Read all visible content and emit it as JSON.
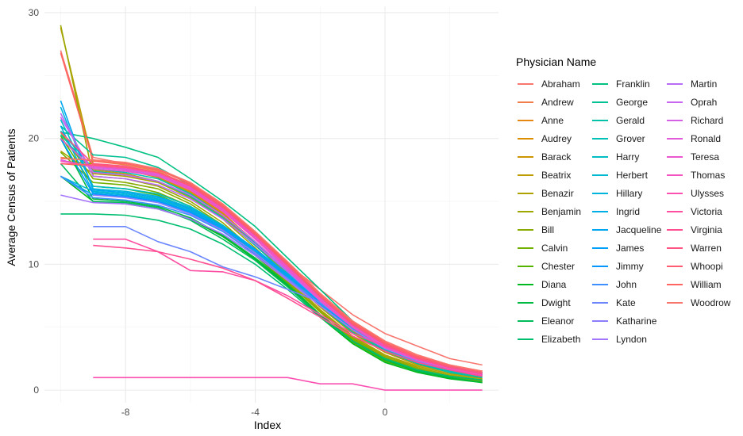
{
  "chart_data": {
    "type": "line",
    "title": "",
    "xlabel": "Index",
    "ylabel": "Average Census of Patients",
    "xlim": [
      -10.5,
      3.5
    ],
    "ylim": [
      -1,
      30.5
    ],
    "x_ticks": [
      -8,
      -4,
      0
    ],
    "y_ticks": [
      0,
      10,
      20,
      30
    ],
    "x": [
      -10,
      -9,
      -8,
      -7,
      -6,
      -5,
      -4,
      -3,
      -2,
      -1,
      0,
      1,
      2,
      3
    ],
    "legend_title": "Physician Name",
    "legend_position": "right",
    "grid": true,
    "series": [
      {
        "name": "Abraham",
        "color": "#F8766D",
        "values": [
          27,
          18.5,
          18,
          17.5,
          16.5,
          14.5,
          12,
          10,
          8,
          6,
          4.5,
          3.5,
          2.5,
          2
        ]
      },
      {
        "name": "Andrew",
        "color": "#F07F4C",
        "values": [
          18.5,
          18.2,
          17.9,
          17.4,
          16.2,
          14.4,
          12.2,
          9.8,
          7.3,
          5.2,
          3.6,
          2.6,
          1.9,
          1.5
        ]
      },
      {
        "name": "Anne",
        "color": "#E68613",
        "values": [
          18,
          17.8,
          17.5,
          17,
          15.8,
          14,
          11.8,
          9.5,
          7,
          5,
          3.5,
          2.5,
          1.8,
          1.4
        ]
      },
      {
        "name": "Audrey",
        "color": "#DB8E00",
        "values": [
          18.2,
          18,
          17.6,
          17,
          15.9,
          14.1,
          11.7,
          9.3,
          6.9,
          4.8,
          3.2,
          2.2,
          1.6,
          1.2
        ]
      },
      {
        "name": "Barack",
        "color": "#CD9600",
        "values": [
          20,
          17.5,
          17.2,
          16.6,
          15.5,
          13.8,
          11.5,
          9.2,
          6.7,
          4.7,
          3.1,
          2.1,
          1.4,
          1
        ]
      },
      {
        "name": "Beatrix",
        "color": "#BE9C00",
        "values": [
          28.8,
          18,
          17.5,
          16.9,
          15.7,
          13.9,
          11.6,
          9.1,
          6.6,
          4.5,
          3,
          2,
          1.4,
          1
        ]
      },
      {
        "name": "Benazir",
        "color": "#AEA200",
        "values": [
          19,
          17.2,
          17,
          16.5,
          15.3,
          13.6,
          11.3,
          8.9,
          6.4,
          4.3,
          2.8,
          1.9,
          1.3,
          0.9
        ]
      },
      {
        "name": "Benjamin",
        "color": "#9DA700",
        "values": [
          29,
          17,
          16.8,
          16.2,
          15,
          13.3,
          11,
          8.7,
          6.3,
          4.2,
          2.7,
          1.8,
          1.2,
          0.8
        ]
      },
      {
        "name": "Bill",
        "color": "#8AAB00",
        "values": [
          20.5,
          16.8,
          16.5,
          16,
          14.8,
          13.1,
          10.9,
          8.6,
          6.2,
          4.1,
          2.6,
          1.7,
          1.1,
          0.7
        ]
      },
      {
        "name": "Calvin",
        "color": "#72B000",
        "values": [
          18.9,
          16.5,
          16.3,
          15.7,
          14.6,
          13,
          10.8,
          8.5,
          6,
          4,
          2.5,
          1.6,
          1,
          0.7
        ]
      },
      {
        "name": "Chester",
        "color": "#53B400",
        "values": [
          20.2,
          16.2,
          16,
          15.5,
          14.4,
          12.8,
          10.7,
          8.4,
          5.9,
          3.8,
          2.3,
          1.5,
          1,
          0.6
        ]
      },
      {
        "name": "Diana",
        "color": "#00B81F",
        "values": [
          17,
          15,
          14.8,
          14.4,
          13.6,
          12.2,
          10.4,
          8.3,
          5.8,
          3.7,
          2.2,
          1.4,
          0.9,
          0.6
        ]
      },
      {
        "name": "Dwight",
        "color": "#00BA42",
        "values": [
          20,
          15.2,
          15,
          14.6,
          13.7,
          12.3,
          10.5,
          8.4,
          6,
          3.9,
          2.4,
          1.5,
          1,
          0.6
        ]
      },
      {
        "name": "Eleanor",
        "color": "#00BC5A",
        "values": [
          18,
          15,
          14.9,
          14.5,
          13.5,
          12,
          10.3,
          8.2,
          5.9,
          3.9,
          2.5,
          1.6,
          1.1,
          0.8
        ]
      },
      {
        "name": "Elizabeth",
        "color": "#00BE70",
        "values": [
          14,
          14,
          13.9,
          13.5,
          12.8,
          11.6,
          10,
          8,
          5.8,
          3.9,
          2.5,
          1.6,
          1.1,
          0.8
        ]
      },
      {
        "name": "Franklin",
        "color": "#00C082",
        "values": [
          20.5,
          20,
          19.3,
          18.5,
          16.8,
          15,
          13,
          10.5,
          8,
          5.5,
          3.7,
          2.5,
          1.7,
          1.2
        ]
      },
      {
        "name": "George",
        "color": "#00C094",
        "values": [
          21,
          18.7,
          18.5,
          17.7,
          16.3,
          14.6,
          12.4,
          10,
          7.6,
          5.3,
          3.6,
          2.4,
          1.6,
          1.1
        ]
      },
      {
        "name": "Gerald",
        "color": "#00C0A5",
        "values": [
          20.3,
          17.4,
          17.1,
          16.6,
          15.4,
          13.7,
          11.5,
          9.1,
          6.7,
          4.6,
          3.1,
          2.1,
          1.4,
          1
        ]
      },
      {
        "name": "Grover",
        "color": "#00BFB4",
        "values": [
          20.6,
          17.6,
          17.3,
          16.8,
          15.6,
          13.9,
          11.7,
          9.3,
          6.9,
          4.8,
          3.2,
          2.2,
          1.5,
          1.1
        ]
      },
      {
        "name": "Harry",
        "color": "#00BCC3",
        "values": [
          21.5,
          16.2,
          16,
          15.6,
          14.6,
          13.1,
          11.2,
          9,
          6.8,
          4.8,
          3.3,
          2.3,
          1.6,
          1.2
        ]
      },
      {
        "name": "Herbert",
        "color": "#00B8D0",
        "values": [
          17,
          15.8,
          15.6,
          15.2,
          14.3,
          12.9,
          11,
          8.9,
          6.7,
          4.8,
          3.3,
          2.3,
          1.6,
          1.2
        ]
      },
      {
        "name": "Hillary",
        "color": "#00B4DC",
        "values": [
          22.5,
          16,
          15.8,
          15.4,
          14.5,
          13,
          11.1,
          9,
          6.8,
          4.9,
          3.4,
          2.4,
          1.7,
          1.3
        ]
      },
      {
        "name": "Ingrid",
        "color": "#00AEE7",
        "values": [
          21,
          15.7,
          15.5,
          15.1,
          14.2,
          12.8,
          10.9,
          8.9,
          6.8,
          5,
          3.5,
          2.5,
          1.8,
          1.3
        ]
      },
      {
        "name": "Jacqueline",
        "color": "#00A7F0",
        "values": [
          23,
          15.9,
          15.7,
          15.3,
          14.4,
          13,
          11.2,
          9.2,
          7.1,
          5.2,
          3.6,
          2.6,
          1.9,
          1.4
        ]
      },
      {
        "name": "James",
        "color": "#00A0F8",
        "values": [
          17,
          15.5,
          15.4,
          15,
          14.2,
          12.9,
          11.1,
          9.1,
          7,
          5,
          3.5,
          2.5,
          1.8,
          1.3
        ]
      },
      {
        "name": "Jimmy",
        "color": "#0098FE",
        "values": [
          20,
          15.6,
          15.4,
          15,
          14.1,
          12.7,
          10.9,
          8.9,
          6.9,
          5,
          3.5,
          2.5,
          1.8,
          1.4
        ]
      },
      {
        "name": "John",
        "color": "#3D8FFF",
        "values": [
          17,
          15.3,
          15.1,
          14.7,
          13.9,
          12.6,
          10.8,
          8.9,
          6.9,
          5.1,
          3.6,
          2.6,
          1.9,
          1.4
        ]
      },
      {
        "name": "Kate",
        "color": "#6B86FF",
        "values": [
          null,
          13,
          13,
          11.8,
          11,
          9.8,
          9,
          8,
          7,
          5,
          3.5,
          2.6,
          1.9,
          1.5
        ]
      },
      {
        "name": "Katharine",
        "color": "#8B7DFF",
        "values": [
          null,
          15.5,
          15.3,
          14.9,
          14,
          12.7,
          10.9,
          8.8,
          6.7,
          4.8,
          3.3,
          2.3,
          1.7,
          1.3
        ]
      },
      {
        "name": "Lyndon",
        "color": "#A374FC",
        "values": [
          15.5,
          14.9,
          14.8,
          14.4,
          13.6,
          12.4,
          10.7,
          8.7,
          6.7,
          4.8,
          3.3,
          2.4,
          1.7,
          1.3
        ]
      },
      {
        "name": "Martin",
        "color": "#B76CF5",
        "values": [
          22,
          17,
          16.8,
          16.3,
          15.2,
          13.6,
          11.6,
          9.4,
          7.1,
          5,
          3.4,
          2.4,
          1.7,
          1.2
        ]
      },
      {
        "name": "Oprah",
        "color": "#C665EE",
        "values": [
          21.7,
          17.3,
          17.1,
          16.6,
          15.5,
          13.9,
          11.8,
          9.5,
          7.2,
          5.1,
          3.5,
          2.4,
          1.7,
          1.2
        ]
      },
      {
        "name": "Richard",
        "color": "#D560E5",
        "values": [
          18.3,
          17.7,
          17.5,
          17.1,
          16,
          14.3,
          12.1,
          9.7,
          7.3,
          5.1,
          3.5,
          2.4,
          1.7,
          1.2
        ]
      },
      {
        "name": "Ronald",
        "color": "#E15ADA",
        "values": [
          18,
          17.9,
          17.7,
          17.2,
          16.1,
          14.4,
          12.2,
          9.8,
          7.3,
          5.1,
          3.5,
          2.5,
          1.8,
          1.3
        ]
      },
      {
        "name": "Teresa",
        "color": "#EB57CE",
        "values": [
          20,
          17.6,
          17.4,
          17,
          15.9,
          14.2,
          12,
          9.6,
          7.1,
          5,
          3.4,
          2.4,
          1.7,
          1.2
        ]
      },
      {
        "name": "Thomas",
        "color": "#F452C0",
        "values": [
          18.2,
          17.8,
          17.6,
          17.2,
          16,
          14.3,
          12.1,
          9.7,
          7.2,
          5,
          3.4,
          2.4,
          1.7,
          1.2
        ]
      },
      {
        "name": "Ulysses",
        "color": "#FA4FB1",
        "values": [
          null,
          1,
          1,
          1,
          1,
          1,
          1,
          1,
          0.5,
          0.5,
          0,
          0,
          0,
          0
        ]
      },
      {
        "name": "Victoria",
        "color": "#FE4EA2",
        "values": [
          null,
          12,
          12,
          11,
          9.5,
          9.4,
          8.7,
          7.5,
          6,
          4.5,
          3.5,
          2.6,
          1.9,
          1.5
        ]
      },
      {
        "name": "Virginia",
        "color": "#FF4F92",
        "values": [
          null,
          11.5,
          11.3,
          11,
          10.4,
          9.7,
          8.7,
          7.3,
          5.8,
          4.3,
          3.1,
          2.2,
          1.6,
          1.1
        ]
      },
      {
        "name": "Warren",
        "color": "#FF5482",
        "values": [
          20.5,
          18,
          17.8,
          17.3,
          16.2,
          14.5,
          12.3,
          9.9,
          7.4,
          5.2,
          3.6,
          2.5,
          1.8,
          1.3
        ]
      },
      {
        "name": "Whoopi",
        "color": "#FF5C71",
        "values": [
          18,
          17.9,
          17.7,
          17.3,
          16.3,
          14.6,
          12.4,
          10,
          7.5,
          5.3,
          3.7,
          2.6,
          1.9,
          1.4
        ]
      },
      {
        "name": "William",
        "color": "#FF6461",
        "values": [
          26.8,
          18.2,
          18,
          17.5,
          16.4,
          14.7,
          12.5,
          10.1,
          7.6,
          5.4,
          3.8,
          2.7,
          2,
          1.5
        ]
      },
      {
        "name": "Woodrow",
        "color": "#F8766D",
        "values": [
          18.4,
          18.3,
          18.1,
          17.6,
          16.5,
          14.8,
          12.6,
          10.2,
          7.7,
          5.5,
          3.9,
          2.8,
          2,
          1.5
        ]
      }
    ]
  }
}
